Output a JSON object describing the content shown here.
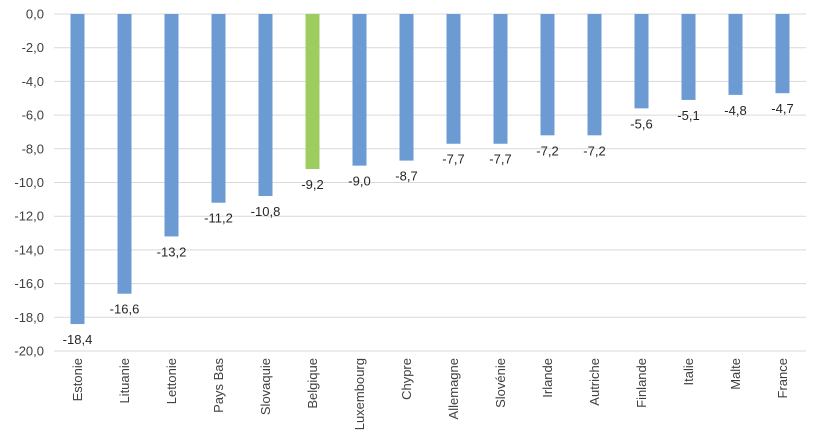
{
  "chart_data": {
    "type": "bar",
    "categories": [
      "Estonie",
      "Lituanie",
      "Lettonie",
      "Pays Bas",
      "Slovaquie",
      "Belgique",
      "Luxembourg",
      "Chypre",
      "Allemagne",
      "Slovénie",
      "Irlande",
      "Autriche",
      "Finlande",
      "Italie",
      "Malte",
      "France"
    ],
    "values": [
      -18.4,
      -16.6,
      -13.2,
      -11.2,
      -10.8,
      -9.2,
      -9.0,
      -8.7,
      -7.7,
      -7.7,
      -7.2,
      -7.2,
      -5.6,
      -5.1,
      -4.8,
      -4.7
    ],
    "data_labels": [
      "-18,4",
      "-16,6",
      "-13,2",
      "-11,2",
      "-10,8",
      "-9,2",
      "-9,0",
      "-8,7",
      "-7,7",
      "-7,7",
      "-7,2",
      "-7,2",
      "-5,6",
      "-5,1",
      "-4,8",
      "-4,7"
    ],
    "title": "",
    "xlabel": "",
    "ylabel": "",
    "ylim": [
      -20,
      0
    ],
    "yticks": [
      0,
      -2,
      -4,
      -6,
      -8,
      -10,
      -12,
      -14,
      -16,
      -18,
      -20
    ],
    "ytick_labels": [
      "0,0",
      "-2,0",
      "-4,0",
      "-6,0",
      "-8,0",
      "-10,0",
      "-12,0",
      "-14,0",
      "-16,0",
      "-18,0",
      "-20,0"
    ],
    "grid": true,
    "legend": "none",
    "colors": {
      "bar": "#6B9BD2",
      "highlight": "#9DCC5F",
      "grid": "#D9D9D9"
    },
    "highlight_index": 5
  }
}
